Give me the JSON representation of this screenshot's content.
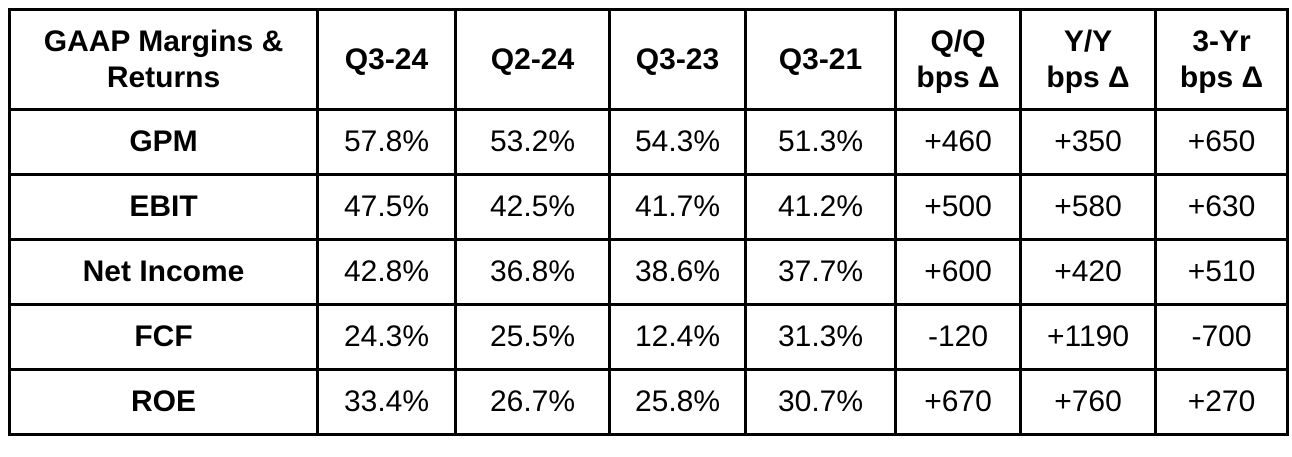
{
  "table": {
    "headers": [
      "GAAP Margins &\nReturns",
      "Q3-24",
      "Q2-24",
      "Q3-23",
      "Q3-21",
      "Q/Q\nbps Δ",
      "Y/Y\nbps Δ",
      "3-Yr\nbps Δ"
    ],
    "rows": [
      {
        "label": "GPM",
        "values": [
          "57.8%",
          "53.2%",
          "54.3%",
          "51.3%",
          "+460",
          "+350",
          "+650"
        ]
      },
      {
        "label": "EBIT",
        "values": [
          "47.5%",
          "42.5%",
          "41.7%",
          "41.2%",
          "+500",
          "+580",
          "+630"
        ]
      },
      {
        "label": "Net Income",
        "values": [
          "42.8%",
          "36.8%",
          "38.6%",
          "37.7%",
          "+600",
          "+420",
          "+510"
        ]
      },
      {
        "label": "FCF",
        "values": [
          "24.3%",
          "25.5%",
          "12.4%",
          "31.3%",
          "-120",
          "+1190",
          "-700"
        ]
      },
      {
        "label": "ROE",
        "values": [
          "33.4%",
          "26.7%",
          "25.8%",
          "30.7%",
          "+670",
          "+760",
          "+270"
        ]
      }
    ]
  },
  "colors": {
    "border": "#000000",
    "text": "#000000",
    "background": "#ffffff"
  },
  "chart_data": {
    "type": "table",
    "title": "GAAP Margins & Returns",
    "columns": [
      "GAAP Margins & Returns",
      "Q3-24",
      "Q2-24",
      "Q3-23",
      "Q3-21",
      "Q/Q bps Δ",
      "Y/Y bps Δ",
      "3-Yr bps Δ"
    ],
    "rows": [
      [
        "GPM",
        "57.8%",
        "53.2%",
        "54.3%",
        "51.3%",
        "+460",
        "+350",
        "+650"
      ],
      [
        "EBIT",
        "47.5%",
        "42.5%",
        "41.7%",
        "41.2%",
        "+500",
        "+580",
        "+630"
      ],
      [
        "Net Income",
        "42.8%",
        "36.8%",
        "38.6%",
        "37.7%",
        "+600",
        "+420",
        "+510"
      ],
      [
        "FCF",
        "24.3%",
        "25.5%",
        "12.4%",
        "31.3%",
        "-120",
        "+1190",
        "-700"
      ],
      [
        "ROE",
        "33.4%",
        "26.7%",
        "25.8%",
        "30.7%",
        "+670",
        "+760",
        "+270"
      ]
    ]
  }
}
